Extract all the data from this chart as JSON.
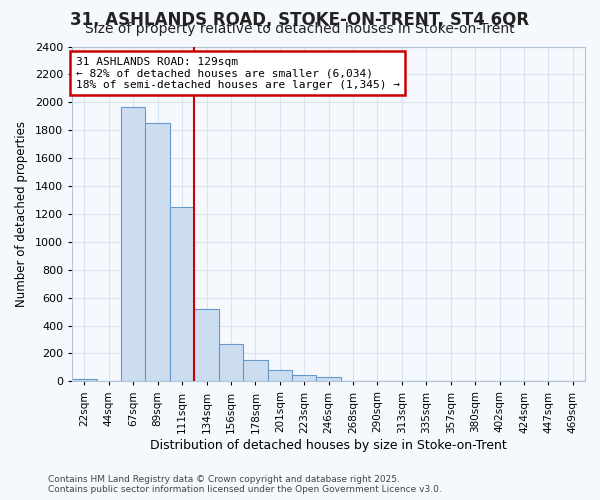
{
  "title1": "31, ASHLANDS ROAD, STOKE-ON-TRENT, ST4 6QR",
  "title2": "Size of property relative to detached houses in Stoke-on-Trent",
  "xlabel": "Distribution of detached houses by size in Stoke-on-Trent",
  "ylabel": "Number of detached properties",
  "bins": [
    "22sqm",
    "44sqm",
    "67sqm",
    "89sqm",
    "111sqm",
    "134sqm",
    "156sqm",
    "178sqm",
    "201sqm",
    "223sqm",
    "246sqm",
    "268sqm",
    "290sqm",
    "313sqm",
    "335sqm",
    "357sqm",
    "380sqm",
    "402sqm",
    "424sqm",
    "447sqm",
    "469sqm"
  ],
  "values": [
    20,
    0,
    1970,
    1850,
    1250,
    520,
    270,
    150,
    85,
    45,
    35,
    0,
    0,
    0,
    0,
    0,
    0,
    0,
    0,
    0,
    0
  ],
  "bar_color": "#ccddf0",
  "bar_edge_color": "#6699cc",
  "vline_color": "#cc0000",
  "vline_index": 5,
  "annotation_title": "31 ASHLANDS ROAD: 129sqm",
  "annotation_line1": "← 82% of detached houses are smaller (6,034)",
  "annotation_line2": "18% of semi-detached houses are larger (1,345) →",
  "annotation_box_edgecolor": "#cc0000",
  "ylim": [
    0,
    2400
  ],
  "yticks": [
    0,
    200,
    400,
    600,
    800,
    1000,
    1200,
    1400,
    1600,
    1800,
    2000,
    2200,
    2400
  ],
  "footer1": "Contains HM Land Registry data © Crown copyright and database right 2025.",
  "footer2": "Contains public sector information licensed under the Open Government Licence v3.0.",
  "bg_color": "#f5f8fc",
  "grid_color": "#d8e4f0",
  "title1_fontsize": 12,
  "title2_fontsize": 10
}
